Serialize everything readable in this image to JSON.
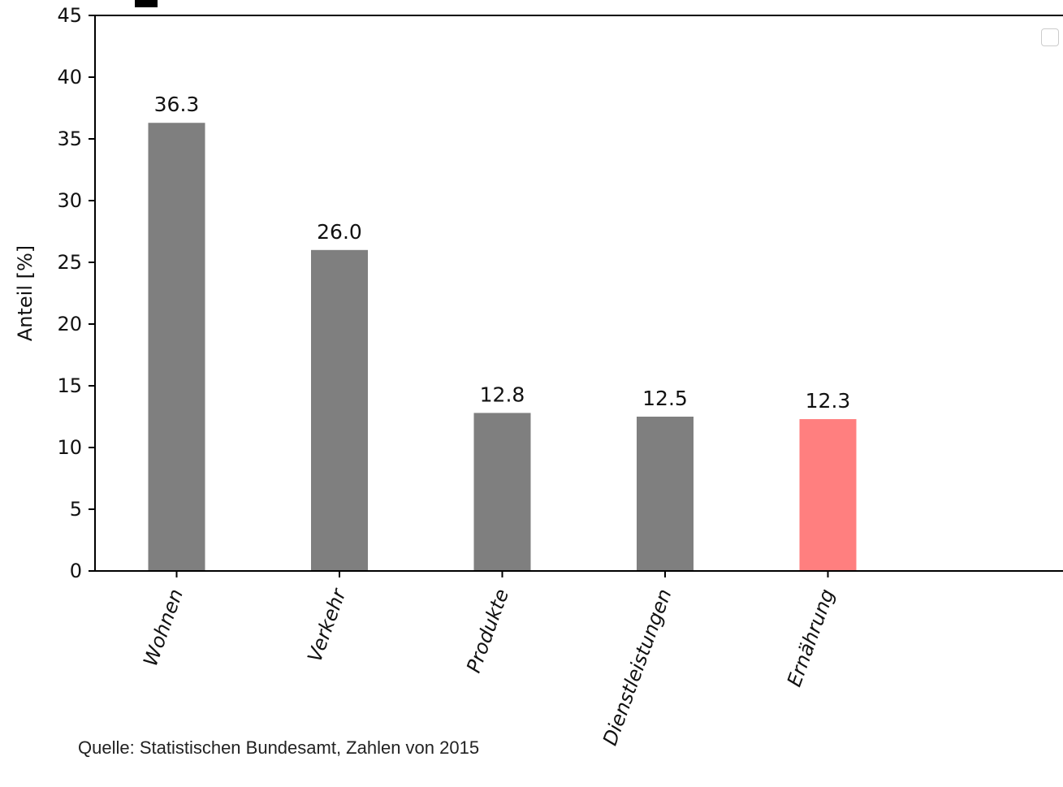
{
  "chart_data": {
    "type": "bar",
    "categories": [
      "Wohnen",
      "Verkehr",
      "Produkte",
      "Dienstleistungen",
      "Ernährung"
    ],
    "values": [
      36.3,
      26.0,
      12.8,
      12.5,
      12.3
    ],
    "value_labels": [
      "36.3",
      "26.0",
      "12.8",
      "12.5",
      "12.3"
    ],
    "title": "",
    "xlabel": "",
    "ylabel": "Anteil [%]",
    "ylim": [
      0,
      45
    ],
    "yticks": [
      0,
      5,
      10,
      15,
      20,
      25,
      30,
      35,
      40,
      45
    ],
    "grid": false,
    "bar_colors": [
      "#7f7f7f",
      "#7f7f7f",
      "#7f7f7f",
      "#7f7f7f",
      "#ff7f7f"
    ],
    "legend": "top-right"
  },
  "source_note": "Quelle: Statistischen Bundesamt, Zahlen von 2015"
}
